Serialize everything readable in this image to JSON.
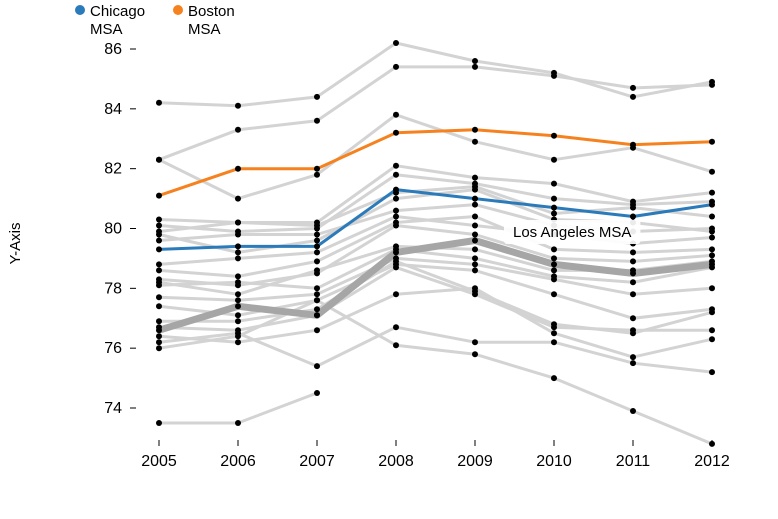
{
  "chart_data": {
    "type": "line",
    "xlabel": "",
    "ylabel": "Y-Axis",
    "x": [
      2005,
      2006,
      2007,
      2008,
      2009,
      2010,
      2011,
      2012
    ],
    "ylim": [
      72.8,
      86.4
    ],
    "yticks": [
      74,
      76,
      78,
      80,
      82,
      84,
      86
    ],
    "grid": false,
    "legend_position": "top-left",
    "colors": {
      "background_series": "#d3d3d3",
      "emphasis_series": "#a6a6a6",
      "point": "#000000"
    },
    "series": [
      {
        "name": "Chicago MSA",
        "color": "#2b7bba",
        "highlight": "legend",
        "values": [
          79.3,
          79.4,
          79.4,
          81.3,
          81.0,
          80.7,
          80.4,
          80.8
        ]
      },
      {
        "name": "Boston MSA",
        "color": "#f5821f",
        "highlight": "legend",
        "values": [
          81.1,
          82.0,
          82.0,
          83.2,
          83.3,
          83.1,
          82.8,
          82.9
        ]
      },
      {
        "name": "Los Angeles MSA",
        "color": "#a6a6a6",
        "highlight": "callout",
        "values": [
          76.6,
          77.4,
          77.1,
          79.2,
          79.6,
          78.8,
          78.5,
          78.8
        ]
      },
      {
        "name": "",
        "values": [
          84.2,
          84.1,
          84.4,
          86.2,
          85.6,
          85.2,
          84.4,
          84.9
        ]
      },
      {
        "name": "",
        "values": [
          82.3,
          83.3,
          83.6,
          85.4,
          85.4,
          85.1,
          84.7,
          84.8
        ]
      },
      {
        "name": "",
        "values": [
          82.3,
          81.0,
          81.8,
          83.8,
          82.9,
          82.3,
          82.7,
          81.9
        ]
      },
      {
        "name": "",
        "values": [
          80.3,
          80.2,
          80.2,
          82.1,
          81.7,
          81.5,
          80.9,
          81.2
        ]
      },
      {
        "name": "",
        "values": [
          80.1,
          79.9,
          80.0,
          81.8,
          81.5,
          81.0,
          80.8,
          80.9
        ]
      },
      {
        "name": "",
        "values": [
          79.9,
          80.2,
          80.1,
          81.2,
          81.4,
          80.5,
          80.7,
          80.4
        ]
      },
      {
        "name": "",
        "values": [
          79.8,
          79.2,
          79.6,
          81.0,
          81.3,
          80.3,
          80.2,
          79.9
        ]
      },
      {
        "name": "",
        "values": [
          79.6,
          79.8,
          79.8,
          80.6,
          80.8,
          80.1,
          79.9,
          80.0
        ]
      },
      {
        "name": "",
        "values": [
          78.8,
          79.0,
          79.2,
          80.4,
          80.1,
          79.8,
          79.5,
          79.7
        ]
      },
      {
        "name": "",
        "values": [
          78.6,
          78.4,
          78.9,
          80.2,
          80.4,
          79.3,
          79.2,
          79.3
        ]
      },
      {
        "name": "",
        "values": [
          78.3,
          78.1,
          78.5,
          80.1,
          79.8,
          79.0,
          78.9,
          79.1
        ]
      },
      {
        "name": "",
        "values": [
          78.2,
          77.8,
          78.6,
          79.4,
          79.3,
          78.6,
          78.6,
          78.9
        ]
      },
      {
        "name": "",
        "values": [
          78.1,
          78.2,
          78.0,
          79.3,
          79.0,
          78.4,
          78.2,
          78.7
        ]
      },
      {
        "name": "",
        "values": [
          77.7,
          77.6,
          77.8,
          79.0,
          78.8,
          78.3,
          77.8,
          78.0
        ]
      },
      {
        "name": "",
        "values": [
          77.4,
          77.1,
          77.6,
          78.8,
          78.6,
          77.8,
          77.0,
          77.3
        ]
      },
      {
        "name": "",
        "values": [
          76.9,
          76.9,
          77.3,
          78.9,
          77.9,
          76.8,
          76.5,
          77.2
        ]
      },
      {
        "name": "",
        "values": [
          76.7,
          76.6,
          77.1,
          78.7,
          77.8,
          76.7,
          76.6,
          76.6
        ]
      },
      {
        "name": "",
        "values": [
          76.4,
          76.2,
          76.6,
          77.8,
          78.0,
          76.5,
          75.7,
          76.3
        ]
      },
      {
        "name": "",
        "values": [
          76.2,
          76.5,
          75.4,
          76.7,
          76.2,
          76.2,
          75.5,
          75.2
        ]
      },
      {
        "name": "",
        "values": [
          76.0,
          76.4,
          77.6,
          76.1,
          75.8,
          75.0,
          73.9,
          72.8
        ]
      },
      {
        "name": "",
        "values": [
          73.5,
          73.5,
          74.5,
          null,
          null,
          null,
          null,
          null
        ]
      }
    ]
  }
}
